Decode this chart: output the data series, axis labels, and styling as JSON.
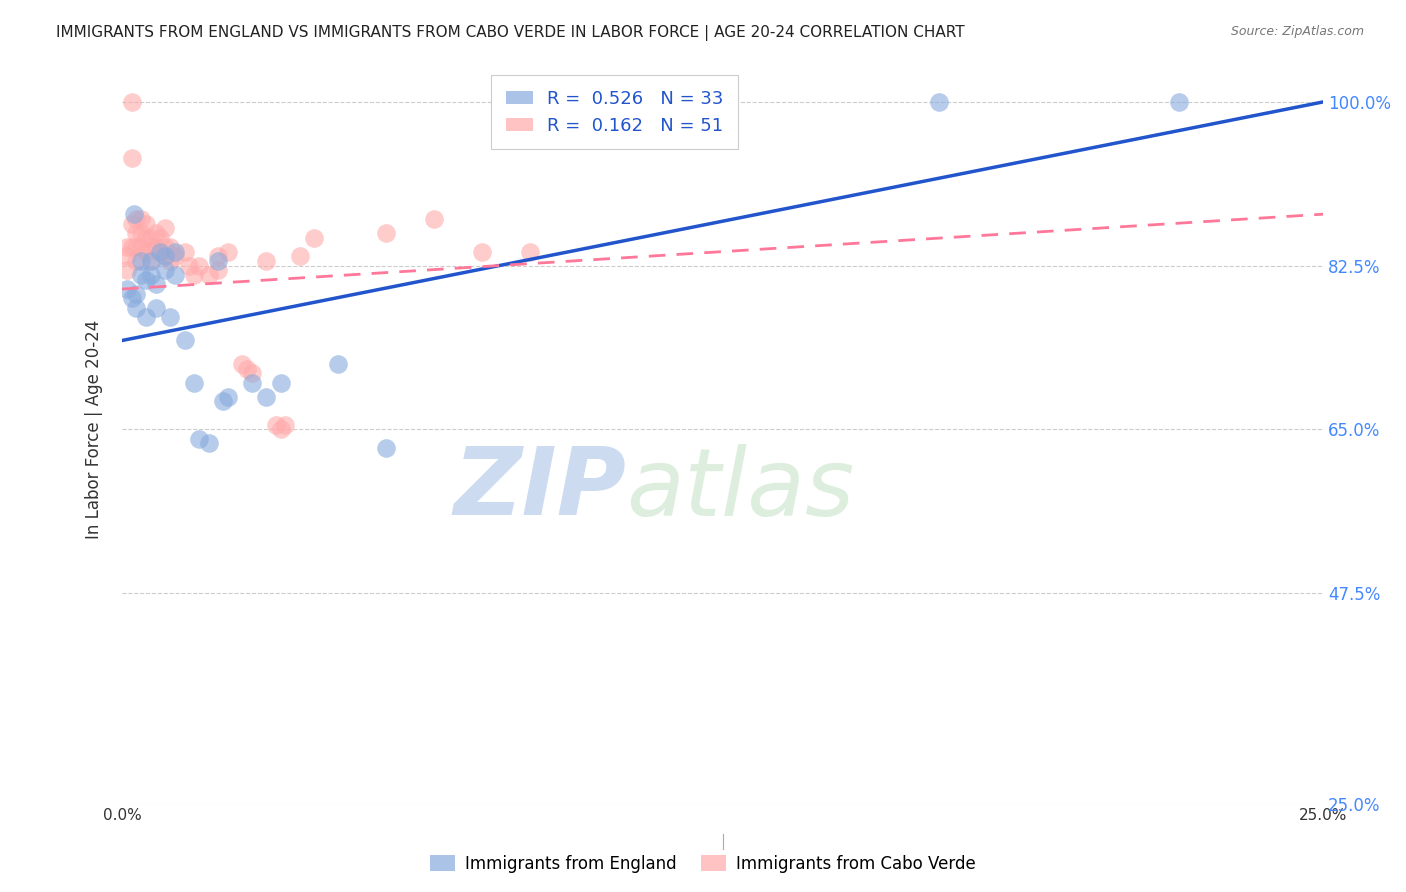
{
  "title": "IMMIGRANTS FROM ENGLAND VS IMMIGRANTS FROM CABO VERDE IN LABOR FORCE | AGE 20-24 CORRELATION CHART",
  "source": "Source: ZipAtlas.com",
  "ylabel": "In Labor Force | Age 20-24",
  "ytick_labels": [
    "25.0%",
    "47.5%",
    "65.0%",
    "82.5%",
    "100.0%"
  ],
  "ytick_values": [
    0.25,
    0.475,
    0.65,
    0.825,
    1.0
  ],
  "xlim": [
    0.0,
    0.25
  ],
  "ylim": [
    0.25,
    1.05
  ],
  "england_color": "#88AADD",
  "caboverde_color": "#FFAAAA",
  "england_label": "Immigrants from England",
  "caboverde_label": "Immigrants from Cabo Verde",
  "england_R": 0.526,
  "england_N": 33,
  "caboverde_R": 0.162,
  "caboverde_N": 51,
  "watermark_zip": "ZIP",
  "watermark_atlas": "atlas",
  "eng_line_x0": 0.0,
  "eng_line_y0": 0.745,
  "eng_line_x1": 0.25,
  "eng_line_y1": 1.0,
  "cv_line_x0": 0.0,
  "cv_line_y0": 0.8,
  "cv_line_x1": 0.25,
  "cv_line_y1": 0.88,
  "grid_color": "#cccccc",
  "background_color": "#ffffff",
  "tick_color_right": "#4488ff",
  "england_x": [
    0.001,
    0.002,
    0.0025,
    0.003,
    0.003,
    0.004,
    0.004,
    0.005,
    0.005,
    0.006,
    0.006,
    0.007,
    0.007,
    0.008,
    0.009,
    0.009,
    0.01,
    0.011,
    0.011,
    0.013,
    0.015,
    0.016,
    0.018,
    0.02,
    0.021,
    0.022,
    0.027,
    0.03,
    0.033,
    0.045,
    0.055,
    0.17,
    0.22
  ],
  "england_y": [
    0.8,
    0.79,
    0.88,
    0.795,
    0.78,
    0.83,
    0.815,
    0.81,
    0.77,
    0.83,
    0.815,
    0.805,
    0.78,
    0.84,
    0.835,
    0.82,
    0.77,
    0.84,
    0.815,
    0.745,
    0.7,
    0.64,
    0.635,
    0.83,
    0.68,
    0.685,
    0.7,
    0.685,
    0.7,
    0.72,
    0.63,
    1.0,
    1.0
  ],
  "caboverde_x": [
    0.001,
    0.001,
    0.001,
    0.002,
    0.002,
    0.002,
    0.002,
    0.003,
    0.003,
    0.003,
    0.003,
    0.004,
    0.004,
    0.004,
    0.005,
    0.005,
    0.005,
    0.006,
    0.006,
    0.006,
    0.007,
    0.007,
    0.008,
    0.008,
    0.009,
    0.009,
    0.009,
    0.01,
    0.01,
    0.011,
    0.013,
    0.014,
    0.015,
    0.016,
    0.018,
    0.02,
    0.02,
    0.022,
    0.025,
    0.026,
    0.027,
    0.03,
    0.032,
    0.033,
    0.034,
    0.037,
    0.04,
    0.055,
    0.065,
    0.075,
    0.085
  ],
  "caboverde_y": [
    0.845,
    0.835,
    0.82,
    1.0,
    0.94,
    0.87,
    0.845,
    0.875,
    0.86,
    0.845,
    0.83,
    0.875,
    0.86,
    0.845,
    0.87,
    0.855,
    0.84,
    0.855,
    0.845,
    0.83,
    0.86,
    0.845,
    0.855,
    0.84,
    0.865,
    0.845,
    0.835,
    0.845,
    0.83,
    0.835,
    0.84,
    0.825,
    0.815,
    0.825,
    0.815,
    0.835,
    0.82,
    0.84,
    0.72,
    0.715,
    0.71,
    0.83,
    0.655,
    0.65,
    0.655,
    0.835,
    0.855,
    0.86,
    0.875,
    0.84,
    0.84
  ]
}
